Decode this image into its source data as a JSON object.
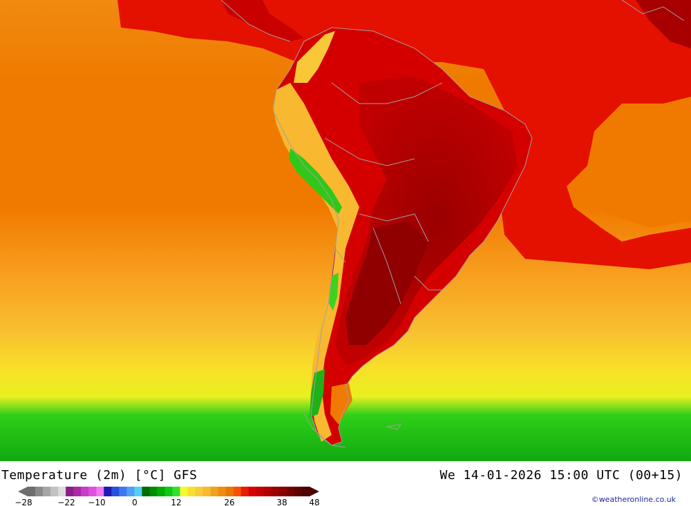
{
  "map": {
    "region": "South America",
    "colors": {
      "ocean_warm": "#f07a00",
      "ocean_mid": "#f89a20",
      "ocean_yellow": "#f8d81a",
      "ocean_green": "#18b818",
      "land_hot": "#a80000",
      "land_red": "#d80000",
      "sea_red": "#e41000",
      "border": "#a0a0a0"
    }
  },
  "footer": {
    "title": "Temperature (2m) [°C] GFS",
    "datetime": "We 14-01-2026 15:00 UTC (00+15)",
    "credit": "©weatheronline.co.uk"
  },
  "legend": {
    "ticks": [
      "−28",
      "−22",
      "−10",
      "0",
      "12",
      "26",
      "38",
      "48"
    ],
    "colors": [
      "#6e6e6e",
      "#8a8a8a",
      "#a6a6a6",
      "#c2c2c2",
      "#dcdcdc",
      "#8c1c8c",
      "#a828a8",
      "#c83cc8",
      "#e050e0",
      "#f078f0",
      "#1c1cb4",
      "#2850dc",
      "#3c78f0",
      "#50a0f8",
      "#50d0f8",
      "#006c00",
      "#008c00",
      "#00ac00",
      "#10c810",
      "#30e030",
      "#f8f830",
      "#f8e030",
      "#f8cc38",
      "#f8b830",
      "#f0a020",
      "#f08c10",
      "#e87800",
      "#f85000",
      "#e81c00",
      "#d80000",
      "#c40000",
      "#b00000",
      "#9c0000",
      "#880000",
      "#740000",
      "#600000",
      "#4c0000"
    ]
  }
}
